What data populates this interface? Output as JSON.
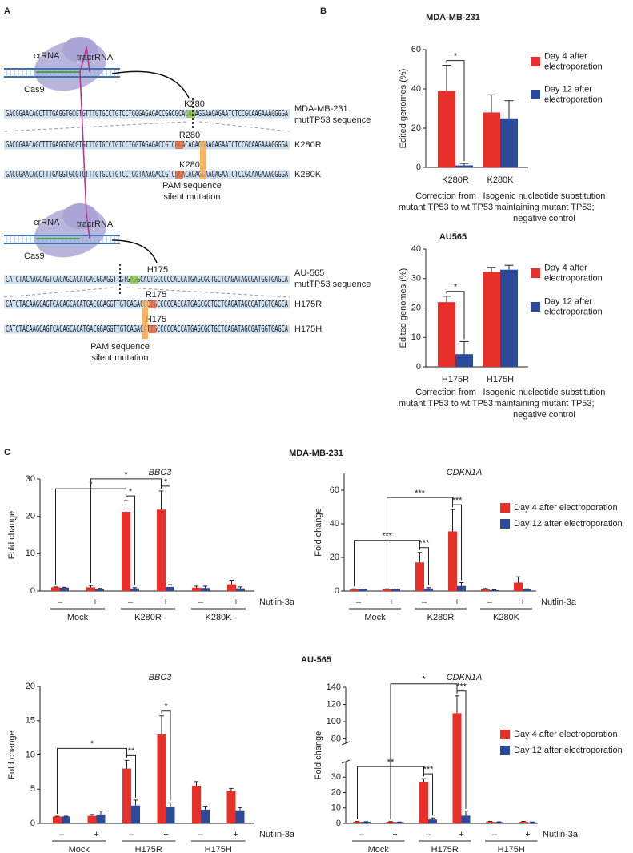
{
  "panels": [
    "A",
    "B",
    "C"
  ],
  "panel_c_rows": [
    "MDA-MB-231",
    "AU-565"
  ],
  "diagram": [
    {
      "rna_labels": [
        "crRNA",
        "tracrRNA"
      ],
      "protein": "Cas9",
      "rows": [
        {
          "site": "K280",
          "sequence": "GACGGAACAGCTTTGAGGTGCGTGTTTGTGCCTGTCCTGGGAGAGACCGGCGCACAGAGGAAGAGAATCTCCGCAAGAAAGGGGA",
          "label": [
            "MDA-MB-231",
            "mutTP53 sequence"
          ]
        },
        {
          "site": "R280",
          "sequence": "GACGGAACAGCTTTGAGGTGCGTGTTTGTGCCTGTCCTGGTAGAGACCGTCGCACAGAGGAAGAGAATCTCCGCAAGAAAGGGGA",
          "label": [
            "K280R"
          ]
        },
        {
          "site": "K280",
          "sequence": "GACGGAACAGCTTTGAGGTGCGTGTTTGTGCCTGTCCTGGTAAAGACCGTCGCACAGAGGAAGAGAATCTCCGCAAGAAAGGGGA",
          "label": [
            "K280K"
          ]
        }
      ],
      "note": [
        "PAM sequence",
        "silent mutation"
      ]
    },
    {
      "rna_labels": [
        "crRNA",
        "tracrRNA"
      ],
      "protein": "Cas9",
      "rows": [
        {
          "site": "H175",
          "sequence": "CATCTACAAGCAGTCACAGCACATGACGGAGGTTGTGAGGCACTGCCCCCACCATGAGCGCTGCTCAGATAGCGATGGTGAGCA",
          "label": [
            "AU-565",
            "mutTP53 sequence"
          ]
        },
        {
          "site": "R175",
          "sequence": "CATCTACAAGCAGTCACAGCACATGACGGAGGTTGTCAGACGCTGCCCCCACCATGAGCGCTGCTCAGATAGCGATGGTGAGCA",
          "label": [
            "H175R"
          ]
        },
        {
          "site": "H175",
          "sequence": "CATCTACAAGCAGTCACAGCACATGACGGAGGTTGTCAGACATTGCCCCCACCATGAGCGCTGCTCAGATAGCGATGGTGAGCA",
          "label": [
            "H175H"
          ]
        }
      ],
      "note": [
        "PAM sequence",
        "silent mutation"
      ]
    }
  ],
  "chart_data": [
    {
      "type": "bar",
      "title": "MDA-MB-231",
      "ylabel": "Edited genomes (%)",
      "categories": [
        "K280R",
        "K280K"
      ],
      "series": [
        {
          "name": "Day 4 after electroporation",
          "color": "#e8302a",
          "values": [
            39,
            28
          ],
          "errors": [
            13,
            9
          ]
        },
        {
          "name": "Day 12 after electroporation",
          "color": "#2c4a9a",
          "values": [
            1,
            25
          ],
          "errors": [
            1,
            9
          ]
        }
      ],
      "ylim": [
        0,
        60
      ],
      "yticks": [
        0,
        20,
        40,
        60
      ],
      "legend": "right",
      "significance": [
        {
          "label": "*",
          "from": [
            0,
            0
          ],
          "to": [
            1,
            0
          ]
        }
      ],
      "captions": [
        [
          "Correction from",
          "mutant TP53 to wt TP53"
        ],
        [
          "Isogenic nucleotide substitution",
          "maintaining mutant TP53;",
          "negative control"
        ]
      ]
    },
    {
      "type": "bar",
      "title": "AU565",
      "ylabel": "Edited genomes (%)",
      "categories": [
        "H175R",
        "H175H"
      ],
      "series": [
        {
          "name": "Day 4 after electroporation",
          "color": "#e8302a",
          "values": [
            22,
            32.3
          ],
          "errors": [
            2,
            1.5
          ]
        },
        {
          "name": "Day 12 after electroporation",
          "color": "#2c4a9a",
          "values": [
            4.3,
            33
          ],
          "errors": [
            4.3,
            1.5
          ]
        }
      ],
      "ylim": [
        0,
        40
      ],
      "yticks": [
        0,
        10,
        20,
        30,
        40
      ],
      "legend": "right",
      "significance": [
        {
          "label": "*",
          "from": [
            0,
            0
          ],
          "to": [
            1,
            0
          ]
        }
      ],
      "captions": [
        [
          "Correction from",
          "mutant TP53 to wt TP53"
        ],
        [
          "Isogenic nucleotide substitution",
          "maintaining mutant TP53;",
          "negative control"
        ]
      ]
    },
    {
      "type": "bar",
      "title": "BBC3",
      "ylabel": "Fold change",
      "groups": [
        "Mock",
        "K280R",
        "K280K"
      ],
      "categories": [
        "–",
        "+",
        "–",
        "+",
        "–",
        "+"
      ],
      "xlabel": "Nutlin-3a",
      "series": [
        {
          "color": "#e8302a",
          "values": [
            1,
            1,
            21.2,
            21.8,
            0.9,
            1.8
          ],
          "errors": [
            0.1,
            0.5,
            3,
            5,
            0.4,
            1.1
          ]
        },
        {
          "color": "#2c4a9a",
          "values": [
            0.9,
            0.5,
            0.7,
            1.1,
            0.8,
            0.7
          ],
          "errors": [
            0.1,
            0.2,
            0.2,
            0.6,
            0.5,
            0.4
          ]
        }
      ],
      "ylim": [
        0,
        30
      ],
      "yticks": [
        0,
        10,
        20,
        30
      ],
      "significance": [
        {
          "label": "*",
          "from": [
            0,
            2
          ],
          "to": [
            1,
            2
          ]
        },
        {
          "label": "*",
          "from": [
            0,
            3
          ],
          "to": [
            1,
            3
          ]
        },
        {
          "label": "*",
          "from": [
            0,
            0
          ],
          "to": [
            0,
            2
          ]
        },
        {
          "label": "*",
          "from": [
            0,
            1
          ],
          "to": [
            0,
            3
          ]
        }
      ]
    },
    {
      "type": "bar",
      "title": "CDKN1A",
      "ylabel": "Fold change",
      "groups": [
        "Mock",
        "K280R",
        "K280K"
      ],
      "categories": [
        "–",
        "+",
        "–",
        "+",
        "–",
        "+"
      ],
      "xlabel": "Nutlin-3a",
      "series": [
        {
          "name": "Day 4 after electroporation",
          "color": "#e8302a",
          "values": [
            1,
            1,
            17,
            35.5,
            1,
            5
          ],
          "errors": [
            0.3,
            0.3,
            6,
            13,
            0.5,
            3.5
          ]
        },
        {
          "name": "Day 12 after electroporation",
          "color": "#2c4a9a",
          "values": [
            1,
            1,
            1.5,
            3,
            0.5,
            1
          ],
          "errors": [
            0.2,
            0.2,
            0.5,
            2,
            0.2,
            0.3
          ]
        }
      ],
      "ylim": [
        0,
        70
      ],
      "yticks": [
        0,
        20,
        40,
        60
      ],
      "legend": "right",
      "significance": [
        {
          "label": "***",
          "from": [
            0,
            2
          ],
          "to": [
            1,
            2
          ]
        },
        {
          "label": "***",
          "from": [
            0,
            3
          ],
          "to": [
            1,
            3
          ]
        },
        {
          "label": "***",
          "from": [
            0,
            0
          ],
          "to": [
            0,
            2
          ]
        },
        {
          "label": "***",
          "from": [
            0,
            1
          ],
          "to": [
            0,
            3
          ]
        }
      ]
    },
    {
      "type": "bar",
      "title": "BBC3",
      "ylabel": "Fold change",
      "groups": [
        "Mock",
        "H175R",
        "H175H"
      ],
      "categories": [
        "–",
        "+",
        "–",
        "+",
        "–",
        "+"
      ],
      "xlabel": "Nutlin-3a",
      "series": [
        {
          "color": "#e8302a",
          "values": [
            1,
            1.1,
            8,
            13,
            5.5,
            4.7
          ],
          "errors": [
            0.05,
            0.2,
            1.2,
            2.7,
            0.6,
            0.4
          ]
        },
        {
          "color": "#2c4a9a",
          "values": [
            1,
            1.3,
            2.6,
            2.4,
            2,
            1.9
          ],
          "errors": [
            0.05,
            0.5,
            0.8,
            0.6,
            0.5,
            0.4
          ]
        }
      ],
      "ylim": [
        0,
        20
      ],
      "yticks": [
        0,
        5,
        10,
        15,
        20
      ],
      "significance": [
        {
          "label": "**",
          "from": [
            0,
            2
          ],
          "to": [
            1,
            2
          ]
        },
        {
          "label": "*",
          "from": [
            0,
            3
          ],
          "to": [
            1,
            3
          ]
        },
        {
          "label": "*",
          "from": [
            0,
            0
          ],
          "to": [
            0,
            2
          ]
        }
      ]
    },
    {
      "type": "bar",
      "title": "CDKN1A",
      "ylabel": "Fold change",
      "groups": [
        "Mock",
        "H175R",
        "H175H"
      ],
      "categories": [
        "–",
        "+",
        "–",
        "+",
        "–",
        "+"
      ],
      "xlabel": "Nutlin-3a",
      "series": [
        {
          "name": "Day 4 after electroporation",
          "color": "#e8302a",
          "values": [
            1,
            1,
            27,
            110,
            1,
            1
          ],
          "errors": [
            0.2,
            0.2,
            2,
            20,
            0.3,
            0.3
          ]
        },
        {
          "name": "Day 12 after electroporation",
          "color": "#2c4a9a",
          "values": [
            1,
            0.8,
            2.5,
            5,
            0.8,
            0.7
          ],
          "errors": [
            0.1,
            0.1,
            1,
            3,
            0.2,
            0.2
          ]
        }
      ],
      "ylim": [
        0,
        140
      ],
      "ybreak": [
        40,
        75
      ],
      "yticks": [
        0,
        10,
        20,
        30,
        80,
        100,
        120,
        140
      ],
      "legend": "right",
      "significance": [
        {
          "label": "***",
          "from": [
            0,
            2
          ],
          "to": [
            1,
            2
          ]
        },
        {
          "label": "***",
          "from": [
            0,
            3
          ],
          "to": [
            1,
            3
          ]
        },
        {
          "label": "**",
          "from": [
            0,
            0
          ],
          "to": [
            0,
            2
          ]
        },
        {
          "label": "*",
          "from": [
            0,
            1
          ],
          "to": [
            0,
            3
          ]
        }
      ]
    }
  ]
}
